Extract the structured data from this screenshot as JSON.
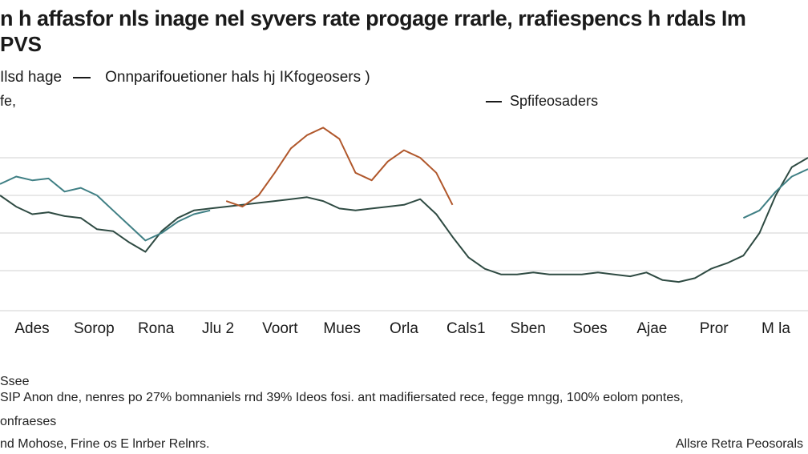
{
  "chart_data": {
    "type": "line",
    "title": "n h affasfor nls inage nel syvers rate progage rrarle, rrafiespencs h rdals Im",
    "title_line2": "PVS",
    "legend_left_label": "Ilsd hage",
    "legend_series_label": "Onnparifouetioner hals hj IKfogeosers )",
    "legend_right_label": "Spfifeosaders",
    "y_unit": "fe,",
    "xlabel": "",
    "ylabel": "",
    "ylim": [
      0,
      100
    ],
    "grid": true,
    "categories": [
      "Ades",
      "Sorop",
      "Rona",
      "Jlu 2",
      "Voort",
      "Mues",
      "Orla",
      "Cals1",
      "Sben",
      "Soes",
      "Ajae",
      "Pror",
      "M la"
    ],
    "x": [
      0,
      2,
      4,
      6,
      8,
      10,
      12,
      14,
      16,
      18,
      20,
      22,
      24,
      26,
      28,
      30,
      32,
      34,
      36,
      38,
      40,
      42,
      44,
      46,
      48,
      50,
      52,
      54,
      56,
      58,
      60,
      62,
      64,
      66,
      68,
      70,
      72,
      74,
      76,
      78,
      80,
      82,
      84,
      86,
      88,
      90,
      92,
      94,
      96,
      98,
      100
    ],
    "series": [
      {
        "name": "Spfifeosaders",
        "color": "#2e4a42",
        "values": [
          60,
          54,
          50,
          51,
          49,
          48,
          42,
          41,
          35,
          30,
          41,
          48,
          52,
          53,
          54,
          55,
          56,
          57,
          58,
          59,
          57,
          53,
          52,
          53,
          54,
          55,
          58,
          50,
          38,
          27,
          21,
          18,
          18,
          19,
          18,
          18,
          18,
          19,
          18,
          17,
          19,
          15,
          14,
          16,
          21,
          24,
          28,
          40,
          60,
          75,
          80
        ]
      },
      {
        "name": "Onnparifouetioner hals hj IKfogeosers )",
        "color": "#b0572b",
        "values": [
          null,
          null,
          null,
          null,
          null,
          null,
          null,
          null,
          null,
          null,
          null,
          null,
          null,
          null,
          57,
          54,
          60,
          72,
          85,
          92,
          96,
          90,
          72,
          68,
          78,
          84,
          80,
          72,
          55,
          null,
          null,
          null,
          null,
          null,
          null,
          null,
          null,
          null,
          null,
          null,
          null,
          null,
          null,
          null,
          null,
          null,
          null,
          null,
          null,
          null,
          null
        ]
      },
      {
        "name": "Ilsd hage",
        "color": "#3f7f84",
        "values": [
          66,
          70,
          68,
          69,
          62,
          64,
          60,
          52,
          44,
          36,
          40,
          46,
          50,
          52,
          null,
          null,
          null,
          null,
          null,
          null,
          null,
          null,
          null,
          null,
          null,
          null,
          null,
          null,
          null,
          null,
          null,
          null,
          null,
          null,
          null,
          null,
          null,
          null,
          null,
          null,
          null,
          null,
          null,
          null,
          null,
          null,
          48,
          52,
          62,
          70,
          74
        ]
      }
    ]
  },
  "footer": {
    "note_label": "Ssee",
    "note_line1": "SIP Anon dne, nenres po 27% bomnaniels rnd 39% Ideos fosi. ant madifiersated rece, fegge mngg, 100% eolom pontes,",
    "note_line2": "onfraeses",
    "source_left": "nd Mohose, Frine os E lnrber Relnrs.",
    "source_right": "Allsre Retra Peosorals"
  },
  "colors": {
    "grid": "#d9d9d9",
    "axis": "#9a9a9a"
  }
}
